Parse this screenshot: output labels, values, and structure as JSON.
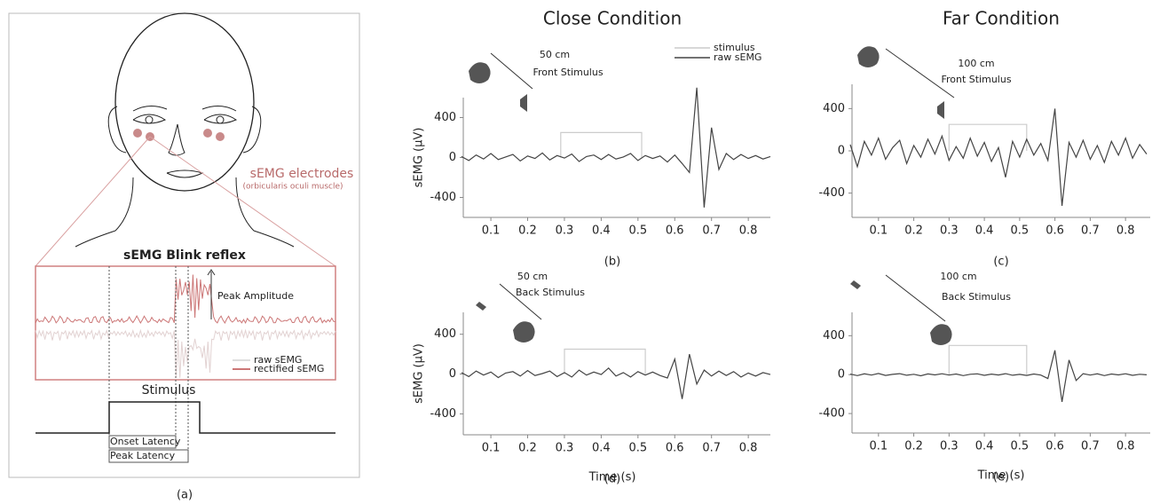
{
  "diagram": {
    "caption": "(a)",
    "electrodes": "sEMG electrodes",
    "muscle": "(orbicularis oculi muscle)",
    "signal_title": "sEMG Blink reflex",
    "peak_amplitude": "Peak Amplitude",
    "legend": [
      "raw sEMG",
      "rectified sEMG"
    ],
    "stimulus": "Stimulus",
    "onset_latency": "Onset Latency",
    "peak_latency": "Peak Latency"
  },
  "chart_data": [
    {
      "type": "line",
      "title": "Close Condition",
      "caption": "(b)",
      "ylabel": "sEMG (µV)",
      "annotations": [
        "50 cm",
        "Front Stimulus"
      ],
      "legend": "upper right",
      "x": [
        0.02,
        0.04,
        0.06,
        0.08,
        0.1,
        0.12,
        0.14,
        0.16,
        0.18,
        0.2,
        0.22,
        0.24,
        0.26,
        0.28,
        0.3,
        0.32,
        0.34,
        0.36,
        0.38,
        0.4,
        0.42,
        0.44,
        0.46,
        0.48,
        0.5,
        0.52,
        0.54,
        0.56,
        0.58,
        0.6,
        0.62,
        0.64,
        0.66,
        0.68,
        0.7,
        0.72,
        0.74,
        0.76,
        0.78,
        0.8,
        0.82,
        0.84,
        0.86
      ],
      "series": [
        {
          "name": "stimulus",
          "color": "#cccccc",
          "x": [
            0.29,
            0.29,
            0.51,
            0.51
          ],
          "values": [
            0,
            250,
            250,
            0
          ]
        },
        {
          "name": "raw sEMG",
          "color": "#444444",
          "values": [
            10,
            -30,
            25,
            -15,
            40,
            -20,
            5,
            30,
            -35,
            15,
            -10,
            45,
            -25,
            20,
            -5,
            35,
            -40,
            10,
            25,
            -20,
            30,
            -15,
            5,
            40,
            -30,
            20,
            -10,
            15,
            -45,
            25,
            -60,
            -150,
            700,
            -500,
            300,
            -120,
            40,
            -20,
            30,
            -10,
            20,
            -15,
            10
          ]
        }
      ],
      "xlim": [
        0.025,
        0.86
      ],
      "ylim": [
        -600,
        600
      ],
      "xticks": [
        0.1,
        0.2,
        0.3,
        0.4,
        0.5,
        0.6,
        0.7,
        0.8
      ],
      "yticks": [
        -400,
        0,
        400
      ]
    },
    {
      "type": "line",
      "title": "Far Condition",
      "caption": "(c)",
      "annotations": [
        "100 cm",
        "Front Stimulus"
      ],
      "x": [
        0.02,
        0.04,
        0.06,
        0.08,
        0.1,
        0.12,
        0.14,
        0.16,
        0.18,
        0.2,
        0.22,
        0.24,
        0.26,
        0.28,
        0.3,
        0.32,
        0.34,
        0.36,
        0.38,
        0.4,
        0.42,
        0.44,
        0.46,
        0.48,
        0.5,
        0.52,
        0.54,
        0.56,
        0.58,
        0.6,
        0.62,
        0.64,
        0.66,
        0.68,
        0.7,
        0.72,
        0.74,
        0.76,
        0.78,
        0.8,
        0.82,
        0.84,
        0.86
      ],
      "series": [
        {
          "color": "#cccccc",
          "x": [
            0.3,
            0.3,
            0.52,
            0.52
          ],
          "values": [
            0,
            250,
            250,
            0
          ]
        },
        {
          "color": "#444444",
          "values": [
            60,
            -150,
            90,
            -40,
            120,
            -80,
            30,
            100,
            -120,
            50,
            -60,
            110,
            -30,
            140,
            -90,
            40,
            -70,
            120,
            -50,
            80,
            -100,
            30,
            -250,
            90,
            -60,
            110,
            -40,
            70,
            -90,
            400,
            -520,
            80,
            -60,
            100,
            -80,
            50,
            -110,
            90,
            -40,
            120,
            -70,
            60,
            -30
          ]
        }
      ],
      "xlim": [
        0.025,
        0.87
      ],
      "ylim": [
        -630,
        630
      ],
      "xticks": [
        0.1,
        0.2,
        0.3,
        0.4,
        0.5,
        0.6,
        0.7,
        0.8
      ],
      "yticks": [
        -400,
        0,
        400
      ]
    },
    {
      "type": "line",
      "caption": "(d)",
      "ylabel": "sEMG (µV)",
      "xlabel": "Time (s)",
      "annotations": [
        "50 cm",
        "Back Stimulus"
      ],
      "x": [
        0.02,
        0.04,
        0.06,
        0.08,
        0.1,
        0.12,
        0.14,
        0.16,
        0.18,
        0.2,
        0.22,
        0.24,
        0.26,
        0.28,
        0.3,
        0.32,
        0.34,
        0.36,
        0.38,
        0.4,
        0.42,
        0.44,
        0.46,
        0.48,
        0.5,
        0.52,
        0.54,
        0.56,
        0.58,
        0.6,
        0.62,
        0.64,
        0.66,
        0.68,
        0.7,
        0.72,
        0.74,
        0.76,
        0.78,
        0.8,
        0.82,
        0.84,
        0.86
      ],
      "series": [
        {
          "color": "#cccccc",
          "x": [
            0.3,
            0.3,
            0.52,
            0.52
          ],
          "values": [
            0,
            250,
            250,
            0
          ]
        },
        {
          "color": "#444444",
          "values": [
            15,
            -25,
            30,
            -10,
            20,
            -35,
            10,
            25,
            -20,
            35,
            -15,
            5,
            30,
            -25,
            15,
            -30,
            40,
            -10,
            20,
            -5,
            60,
            -20,
            15,
            -30,
            25,
            -10,
            20,
            -15,
            -40,
            150,
            -250,
            200,
            -100,
            40,
            -20,
            30,
            -15,
            25,
            -30,
            10,
            -20,
            15,
            -5
          ]
        }
      ],
      "xlim": [
        0.025,
        0.86
      ],
      "ylim": [
        -610,
        620
      ],
      "xticks": [
        0.1,
        0.2,
        0.3,
        0.4,
        0.5,
        0.6,
        0.7,
        0.8
      ],
      "yticks": [
        -400,
        0,
        400
      ]
    },
    {
      "type": "line",
      "caption": "(e)",
      "xlabel": "Time (s)",
      "annotations": [
        "100 cm",
        "Back Stimulus"
      ],
      "x": [
        0.02,
        0.04,
        0.06,
        0.08,
        0.1,
        0.12,
        0.14,
        0.16,
        0.18,
        0.2,
        0.22,
        0.24,
        0.26,
        0.28,
        0.3,
        0.32,
        0.34,
        0.36,
        0.38,
        0.4,
        0.42,
        0.44,
        0.46,
        0.48,
        0.5,
        0.52,
        0.54,
        0.56,
        0.58,
        0.6,
        0.62,
        0.64,
        0.66,
        0.68,
        0.7,
        0.72,
        0.74,
        0.76,
        0.78,
        0.8,
        0.82,
        0.84,
        0.86
      ],
      "series": [
        {
          "color": "#cccccc",
          "x": [
            0.3,
            0.3,
            0.52,
            0.52
          ],
          "values": [
            0,
            300,
            300,
            0
          ]
        },
        {
          "color": "#444444",
          "values": [
            5,
            -10,
            8,
            -5,
            12,
            -8,
            3,
            10,
            -6,
            4,
            -12,
            7,
            -3,
            9,
            -5,
            6,
            -10,
            4,
            8,
            -7,
            5,
            -4,
            10,
            -6,
            3,
            -8,
            6,
            -5,
            -40,
            250,
            -280,
            150,
            -60,
            10,
            -5,
            8,
            -10,
            6,
            -3,
            9,
            -7,
            4,
            -2
          ]
        }
      ],
      "xlim": [
        0.025,
        0.87
      ],
      "ylim": [
        -600,
        640
      ],
      "xticks": [
        0.1,
        0.2,
        0.3,
        0.4,
        0.5,
        0.6,
        0.7,
        0.8
      ],
      "yticks": [
        -400,
        0,
        400
      ]
    }
  ]
}
